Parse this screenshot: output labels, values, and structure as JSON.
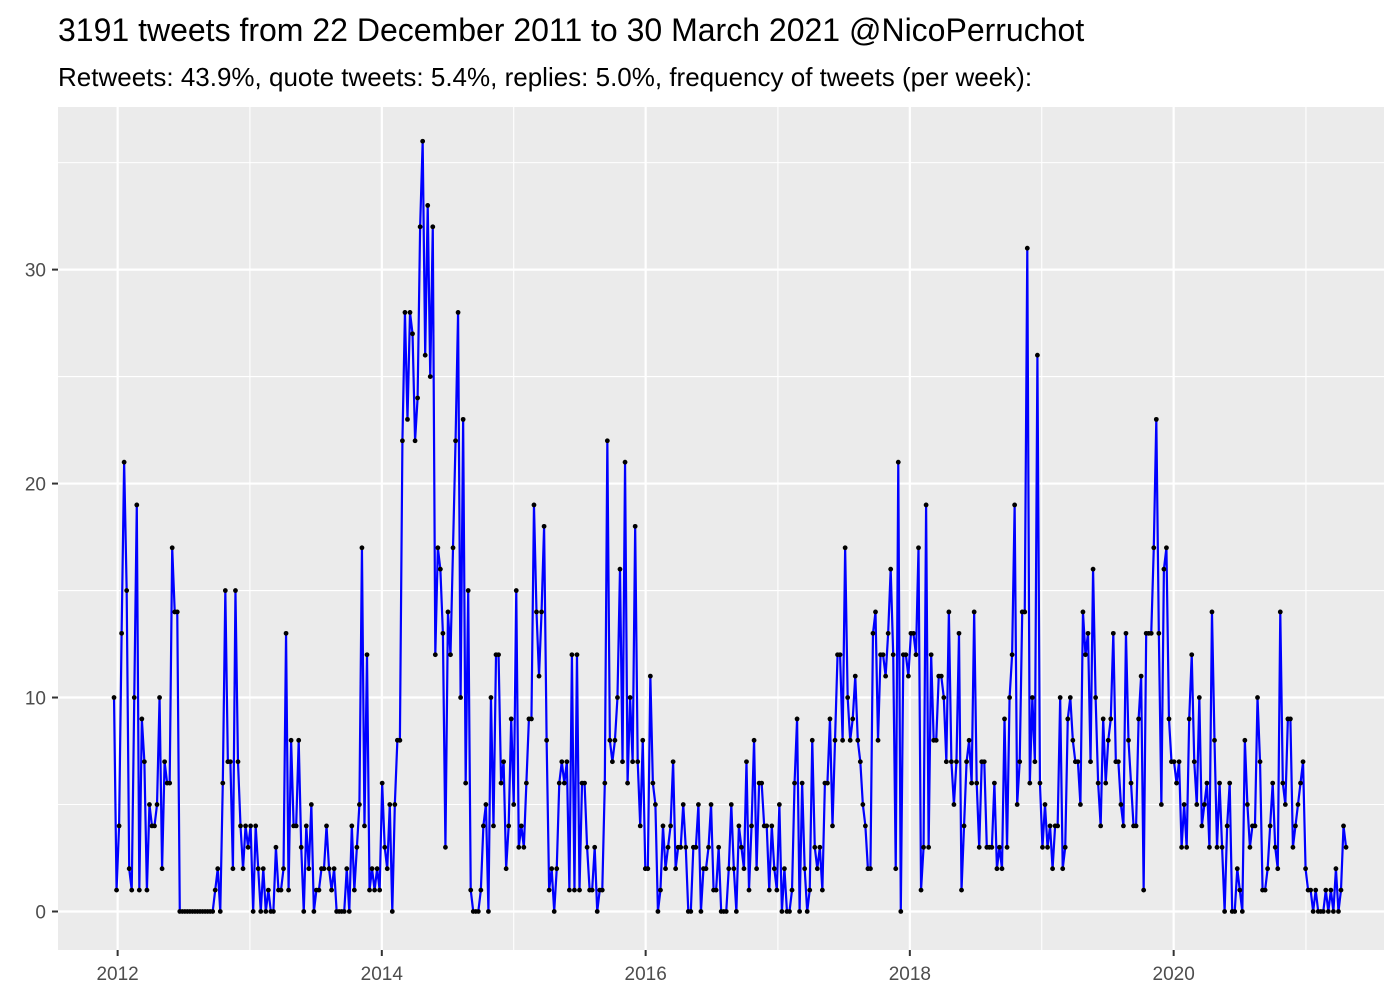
{
  "chart_data": {
    "type": "line",
    "title": "3191 tweets from 22 December 2011 to 30 March 2021 @NicoPerruchot",
    "subtitle": "Retweets: 43.9%, quote tweets: 5.4%, replies: 5.0%, frequency of tweets (per week):",
    "xlabel": "",
    "ylabel": "",
    "x_axis_type": "date",
    "x_ticks": [
      "2012",
      "2014",
      "2016",
      "2018",
      "2020"
    ],
    "y_ticks": [
      "0",
      "10",
      "20",
      "30"
    ],
    "ylim": [
      -1.8,
      37.6
    ],
    "xlim": [
      "2011-07-20",
      "2021-08-05"
    ],
    "grid": true,
    "line_color": "#0000ff",
    "point_color": "#000000",
    "panel_background": "#ebebeb",
    "series": [
      {
        "x_start": "2011-12-22",
        "x_step_days": 7,
        "values": [
          10,
          1,
          4,
          13,
          21,
          15,
          2,
          1,
          10,
          19,
          1,
          9,
          7,
          1,
          5,
          4,
          4,
          5,
          10,
          2,
          7,
          6,
          6,
          17,
          14,
          14,
          0,
          0,
          0,
          0,
          0,
          0,
          0,
          0,
          0,
          0,
          0,
          0,
          0,
          0,
          1,
          2,
          0,
          6,
          15,
          7,
          7,
          2,
          15,
          7,
          4,
          2,
          4,
          3,
          4,
          0,
          4,
          2,
          0,
          2,
          0,
          1,
          0,
          0,
          3,
          1,
          1,
          2,
          13,
          1,
          8,
          4,
          4,
          8,
          3,
          0,
          4,
          2,
          5,
          0,
          1,
          1,
          2,
          2,
          4,
          2,
          1,
          2,
          0,
          0,
          0,
          0,
          2,
          0,
          4,
          1,
          3,
          5,
          17,
          4,
          12,
          1,
          2,
          1,
          2,
          1,
          6,
          3,
          2,
          5,
          0,
          5,
          8,
          8,
          22,
          28,
          23,
          28,
          27,
          22,
          24,
          32,
          36,
          26,
          33,
          25,
          32,
          12,
          17,
          16,
          13,
          3,
          14,
          12,
          17,
          22,
          28,
          10,
          23,
          6,
          15,
          1,
          0,
          0,
          0,
          1,
          4,
          5,
          0,
          10,
          4,
          12,
          12,
          6,
          7,
          2,
          4,
          9,
          5,
          15,
          3,
          4,
          3,
          6,
          9,
          9,
          19,
          14,
          11,
          14,
          18,
          8,
          1,
          2,
          0,
          2,
          6,
          7,
          6,
          7,
          1,
          12,
          1,
          12,
          1,
          6,
          6,
          3,
          1,
          1,
          3,
          0,
          1,
          1,
          6,
          22,
          8,
          7,
          8,
          10,
          16,
          7,
          21,
          6,
          10,
          7,
          18,
          7,
          4,
          8,
          2,
          2,
          11,
          6,
          5,
          0,
          1,
          4,
          2,
          3,
          4,
          7,
          2,
          3,
          3,
          5,
          3,
          0,
          0,
          3,
          3,
          5,
          0,
          2,
          2,
          3,
          5,
          1,
          1,
          3,
          0,
          0,
          0,
          2,
          5,
          2,
          0,
          4,
          3,
          2,
          7,
          1,
          4,
          8,
          2,
          6,
          6,
          4,
          4,
          1,
          4,
          2,
          1,
          5,
          0,
          2,
          0,
          0,
          1,
          6,
          9,
          0,
          6,
          2,
          0,
          1,
          8,
          3,
          2,
          3,
          1,
          6,
          6,
          9,
          4,
          8,
          12,
          12,
          8,
          17,
          10,
          8,
          9,
          11,
          8,
          7,
          5,
          4,
          2,
          2,
          13,
          14,
          8,
          12,
          12,
          11,
          13,
          16,
          12,
          2,
          21,
          0,
          12,
          12,
          11,
          13,
          13,
          12,
          17,
          1,
          3,
          19,
          3,
          12,
          8,
          8,
          11,
          11,
          10,
          7,
          14,
          7,
          5,
          7,
          13,
          1,
          4,
          7,
          8,
          6,
          14,
          6,
          3,
          7,
          7,
          3,
          3,
          3,
          6,
          2,
          3,
          2,
          9,
          3,
          10,
          12,
          19,
          5,
          7,
          14,
          14,
          31,
          6,
          10,
          7,
          26,
          6,
          3,
          5,
          3,
          4,
          2,
          4,
          4,
          10,
          2,
          3,
          9,
          10,
          8,
          7,
          7,
          5,
          14,
          12,
          13,
          7,
          16,
          10,
          6,
          4,
          9,
          6,
          8,
          9,
          13,
          7,
          7,
          5,
          4,
          13,
          8,
          6,
          4,
          4,
          9,
          11,
          1,
          13,
          13,
          13,
          17,
          23,
          13,
          5,
          16,
          17,
          9,
          7,
          7,
          6,
          7,
          3,
          5,
          3,
          9,
          12,
          7,
          5,
          10,
          4,
          5,
          6,
          3,
          14,
          8,
          3,
          6,
          3,
          0,
          4,
          6,
          0,
          0,
          2,
          1,
          0,
          8,
          5,
          3,
          4,
          4,
          10,
          7,
          1,
          1,
          2,
          4,
          6,
          3,
          2,
          14,
          6,
          5,
          9,
          9,
          3,
          4,
          5,
          6,
          7,
          2,
          1,
          1,
          0,
          1,
          0,
          0,
          0,
          1,
          0,
          1,
          0,
          2,
          0,
          1,
          4,
          3
        ]
      }
    ]
  }
}
